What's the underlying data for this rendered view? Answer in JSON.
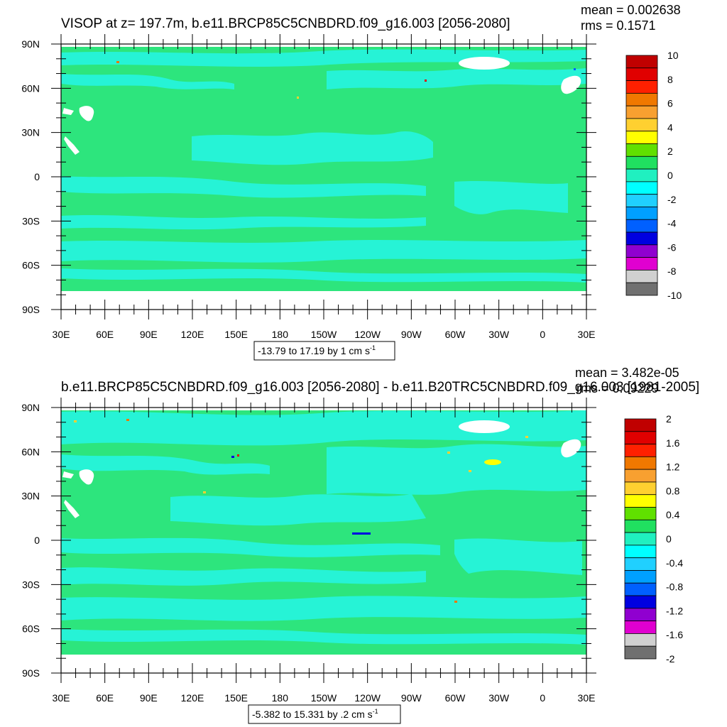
{
  "axes": {
    "lat_labels": [
      "90N",
      "60N",
      "30N",
      "0",
      "30S",
      "60S",
      "90S"
    ],
    "lon_labels": [
      "30E",
      "60E",
      "90E",
      "120E",
      "150E",
      "180",
      "150W",
      "120W",
      "90W",
      "60W",
      "30W",
      "0",
      "30E"
    ]
  },
  "panels": [
    {
      "title": "VISOP at z= 197.7m, b.e11.BRCP85C5CNBDRD.f09_g16.003 [2056-2080]",
      "mean": "mean = 0.002638",
      "rms": "rms = 0.1571",
      "range_text": "-13.79 to 17.19 by 1 cm s",
      "range_exp": "-1",
      "colorbar_labels": [
        "10",
        "8",
        "6",
        "4",
        "2",
        "0",
        "-2",
        "-4",
        "-6",
        "-8",
        "-10"
      ],
      "colorbar_colors": [
        "#c00000",
        "#e00000",
        "#ff2000",
        "#f07800",
        "#f8a030",
        "#ffd030",
        "#ffff00",
        "#60e000",
        "#20e060",
        "#20f0c0",
        "#00ffff",
        "#20d0ff",
        "#00a0ff",
        "#0060ff",
        "#0000e0",
        "#9000d0",
        "#e000d0",
        "#d0d0d0",
        "#707070"
      ]
    },
    {
      "title": "b.e11.BRCP85C5CNBDRD.f09_g16.003 [2056-2080] - b.e11.B20TRC5CNBDRD.f09_g16.003 [1981-2005]",
      "mean": "mean = 3.482e-05",
      "rms": "rms = 0.09229",
      "range_text": "-5.382 to 15.331 by .2 cm s",
      "range_exp": "-1",
      "colorbar_labels": [
        "2",
        "1.6",
        "1.2",
        "0.8",
        "0.4",
        "0",
        "-0.4",
        "-0.8",
        "-1.2",
        "-1.6",
        "-2"
      ],
      "colorbar_colors": [
        "#c00000",
        "#e00000",
        "#ff2000",
        "#f07800",
        "#f8a030",
        "#ffd030",
        "#ffff00",
        "#60e000",
        "#20e060",
        "#20f0c0",
        "#00ffff",
        "#20d0ff",
        "#00a0ff",
        "#0060ff",
        "#0000e0",
        "#9000d0",
        "#e000d0",
        "#d0d0d0",
        "#707070"
      ]
    }
  ],
  "colors": {
    "land": "#ffffff",
    "ocean_base": "#2de57d",
    "ocean_band": "#26f3d6"
  }
}
